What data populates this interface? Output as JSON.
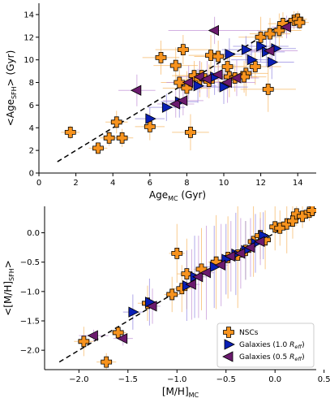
{
  "chart_data": [
    {
      "type": "scatter",
      "xlabel": "Age",
      "xlabel_sub": "MC",
      "xlabel_unit": " (Gyr)",
      "ylabel": "<Age",
      "ylabel_sub": "SFH",
      "ylabel_unit": "> (Gyr)",
      "xlim": [
        0,
        15
      ],
      "ylim": [
        0,
        15
      ],
      "xticks": [
        0,
        2,
        4,
        6,
        8,
        10,
        12,
        14
      ],
      "yticks": [
        0,
        2,
        4,
        6,
        8,
        10,
        12,
        14
      ],
      "reference_line": {
        "x": [
          1,
          14
        ],
        "y": [
          1,
          14
        ],
        "style": "dashed"
      },
      "series": [
        {
          "name": "NSCs",
          "marker": "plus",
          "color": "#f7931e",
          "errcolor": "#f7b560",
          "points": [
            {
              "x": 1.7,
              "y": 3.6,
              "xerr": 0.5,
              "yerr": 0.6
            },
            {
              "x": 3.2,
              "y": 2.2,
              "xerr": 0.5,
              "yerr": 0.5
            },
            {
              "x": 4.2,
              "y": 4.5,
              "xerr": 0.6,
              "yerr": 1.0
            },
            {
              "x": 3.8,
              "y": 3.1,
              "xerr": 0.5,
              "yerr": 0.7
            },
            {
              "x": 4.5,
              "y": 3.1,
              "xerr": 0.6,
              "yerr": 0.8
            },
            {
              "x": 6.0,
              "y": 4.1,
              "xerr": 0.8,
              "yerr": 1.2
            },
            {
              "x": 6.6,
              "y": 10.2,
              "xerr": 1.0,
              "yerr": 1.5
            },
            {
              "x": 7.4,
              "y": 9.5,
              "xerr": 1.2,
              "yerr": 1.6
            },
            {
              "x": 7.8,
              "y": 10.9,
              "xerr": 1.5,
              "yerr": 1.3
            },
            {
              "x": 7.6,
              "y": 8.0,
              "xerr": 1.0,
              "yerr": 1.4
            },
            {
              "x": 8.0,
              "y": 7.5,
              "xerr": 1.3,
              "yerr": 1.5
            },
            {
              "x": 8.2,
              "y": 3.6,
              "xerr": 1.0,
              "yerr": 1.6
            },
            {
              "x": 8.4,
              "y": 8.6,
              "xerr": 1.2,
              "yerr": 1.3
            },
            {
              "x": 8.7,
              "y": 8.3,
              "xerr": 1.0,
              "yerr": 1.6
            },
            {
              "x": 8.8,
              "y": 8.6,
              "xerr": 1.4,
              "yerr": 1.2
            },
            {
              "x": 9.3,
              "y": 10.4,
              "xerr": 1.2,
              "yerr": 1.8
            },
            {
              "x": 9.7,
              "y": 10.3,
              "xerr": 1.3,
              "yerr": 1.4
            },
            {
              "x": 10.2,
              "y": 9.4,
              "xerr": 1.0,
              "yerr": 1.5
            },
            {
              "x": 10.3,
              "y": 8.5,
              "xerr": 1.5,
              "yerr": 1.8
            },
            {
              "x": 11.2,
              "y": 8.8,
              "xerr": 1.2,
              "yerr": 2.0
            },
            {
              "x": 11.7,
              "y": 9.4,
              "xerr": 1.4,
              "yerr": 1.6
            },
            {
              "x": 12.0,
              "y": 12.0,
              "xerr": 1.2,
              "yerr": 1.8
            },
            {
              "x": 12.4,
              "y": 7.4,
              "xerr": 1.5,
              "yerr": 2.0
            },
            {
              "x": 12.5,
              "y": 12.3,
              "xerr": 1.1,
              "yerr": 1.4
            },
            {
              "x": 13.0,
              "y": 12.6,
              "xerr": 1.2,
              "yerr": 1.5
            },
            {
              "x": 13.2,
              "y": 13.2,
              "xerr": 0.8,
              "yerr": 1.0
            },
            {
              "x": 13.8,
              "y": 13.5,
              "xerr": 0.6,
              "yerr": 0.8
            },
            {
              "x": 14.0,
              "y": 13.6,
              "xerr": 0.5,
              "yerr": 0.7
            },
            {
              "x": 14.1,
              "y": 13.3,
              "xerr": 0.5,
              "yerr": 0.6
            },
            {
              "x": 11.1,
              "y": 8.5,
              "xerr": 1.2,
              "yerr": 1.4
            },
            {
              "x": 10.6,
              "y": 8.4,
              "xerr": 1.0,
              "yerr": 1.2
            },
            {
              "x": 9.2,
              "y": 8.1,
              "xerr": 1.1,
              "yerr": 1.5
            }
          ]
        },
        {
          "name": "Galaxies (1.0 R_eff)",
          "marker": "triangle-right",
          "color": "#0a1fb5",
          "errcolor": "#8f83e0",
          "points": [
            {
              "x": 6.0,
              "y": 4.8,
              "xerr": 0.8,
              "yerr": 1.0
            },
            {
              "x": 6.9,
              "y": 5.8,
              "xerr": 1.0,
              "yerr": 1.2
            },
            {
              "x": 7.6,
              "y": 6.3,
              "xerr": 1.0,
              "yerr": 1.4
            },
            {
              "x": 8.6,
              "y": 7.7,
              "xerr": 1.0,
              "yerr": 1.5
            },
            {
              "x": 9.5,
              "y": 8.5,
              "xerr": 1.2,
              "yerr": 1.6
            },
            {
              "x": 10.0,
              "y": 7.6,
              "xerr": 1.3,
              "yerr": 1.5
            },
            {
              "x": 10.3,
              "y": 10.5,
              "xerr": 1.2,
              "yerr": 1.4
            },
            {
              "x": 11.2,
              "y": 10.9,
              "xerr": 1.3,
              "yerr": 1.2
            },
            {
              "x": 11.5,
              "y": 10.0,
              "xerr": 1.1,
              "yerr": 1.6
            },
            {
              "x": 12.0,
              "y": 11.2,
              "xerr": 1.5,
              "yerr": 1.4
            },
            {
              "x": 12.3,
              "y": 10.7,
              "xerr": 1.0,
              "yerr": 1.3
            },
            {
              "x": 12.6,
              "y": 9.8,
              "xerr": 1.2,
              "yerr": 1.5
            },
            {
              "x": 12.8,
              "y": 11.0,
              "xerr": 1.1,
              "yerr": 1.2
            }
          ]
        },
        {
          "name": "Galaxies (0.5 R_eff)",
          "marker": "triangle-left",
          "color": "#6b1a6e",
          "errcolor": "#c08fd6",
          "points": [
            {
              "x": 5.3,
              "y": 7.3,
              "xerr": 1.0,
              "yerr": 1.4
            },
            {
              "x": 7.4,
              "y": 6.1,
              "xerr": 1.0,
              "yerr": 1.2
            },
            {
              "x": 7.8,
              "y": 6.4,
              "xerr": 1.1,
              "yerr": 1.3
            },
            {
              "x": 8.1,
              "y": 8.0,
              "xerr": 1.2,
              "yerr": 1.5
            },
            {
              "x": 8.7,
              "y": 8.5,
              "xerr": 1.2,
              "yerr": 1.4
            },
            {
              "x": 9.1,
              "y": 8.3,
              "xerr": 1.0,
              "yerr": 1.6
            },
            {
              "x": 9.7,
              "y": 8.7,
              "xerr": 1.3,
              "yerr": 1.5
            },
            {
              "x": 10.2,
              "y": 8.0,
              "xerr": 1.5,
              "yerr": 1.8
            },
            {
              "x": 10.7,
              "y": 8.4,
              "xerr": 1.2,
              "yerr": 1.6
            },
            {
              "x": 9.5,
              "y": 12.6,
              "xerr": 2.5,
              "yerr": 1.2
            },
            {
              "x": 12.5,
              "y": 10.8,
              "xerr": 1.5,
              "yerr": 1.6
            },
            {
              "x": 13.4,
              "y": 12.9,
              "xerr": 0.8,
              "yerr": 1.0
            }
          ]
        }
      ]
    },
    {
      "type": "scatter",
      "xlabel": "[M/H]",
      "xlabel_sub": "MC",
      "xlabel_unit": "",
      "ylabel": "<[M/H]",
      "ylabel_sub": "SFH",
      "ylabel_unit": ">",
      "xlim": [
        -2.35,
        0.42
      ],
      "ylim": [
        -2.33,
        0.45
      ],
      "xticks": [
        -2.0,
        -1.5,
        -1.0,
        -0.5,
        0.0,
        0.5
      ],
      "xtick_labels": [
        "−2.0",
        "−1.5",
        "−1.0",
        "−0.5",
        "0.0",
        "0.5"
      ],
      "yticks": [
        -2.0,
        -1.5,
        -1.0,
        -0.5,
        0.0,
        0.5
      ],
      "ytick_labels": [
        "−2.0",
        "−1.5",
        "−1.0",
        "−0.5",
        "0.0",
        "0.5"
      ],
      "reference_line": {
        "x": [
          -2.2,
          0.4
        ],
        "y": [
          -2.2,
          0.4
        ],
        "style": "dashed"
      },
      "legend": {
        "position": "bottom-right",
        "entries": [
          {
            "label": "NSCs",
            "marker": "plus",
            "color": "#f7931e"
          },
          {
            "label": "Galaxies (1.0 ",
            "label_italic": "R",
            "label_sub": "eff",
            "label_end": ")",
            "marker": "triangle-right",
            "color": "#0a1fb5"
          },
          {
            "label": "Galaxies (0.5 ",
            "label_italic": "R",
            "label_sub": "eff",
            "label_end": ")",
            "marker": "triangle-left",
            "color": "#6b1a6e"
          }
        ]
      },
      "series": [
        {
          "name": "NSCs",
          "marker": "plus",
          "color": "#f7931e",
          "errcolor": "#f7b560",
          "points": [
            {
              "x": -1.95,
              "y": -1.85,
              "xerr": 0.1,
              "yerr": 0.25
            },
            {
              "x": -1.72,
              "y": -2.2,
              "xerr": 0.1,
              "yerr": 0.15
            },
            {
              "x": -1.6,
              "y": -1.7,
              "xerr": 0.08,
              "yerr": 0.1
            },
            {
              "x": -1.3,
              "y": -1.2,
              "xerr": 0.1,
              "yerr": 0.3
            },
            {
              "x": -1.05,
              "y": -1.05,
              "xerr": 0.08,
              "yerr": 0.3
            },
            {
              "x": -1.0,
              "y": -0.35,
              "xerr": 0.08,
              "yerr": 0.5
            },
            {
              "x": -0.95,
              "y": -0.95,
              "xerr": 0.1,
              "yerr": 0.4
            },
            {
              "x": -0.9,
              "y": -0.7,
              "xerr": 0.1,
              "yerr": 0.6
            },
            {
              "x": -0.75,
              "y": -0.62,
              "xerr": 0.08,
              "yerr": 0.7
            },
            {
              "x": -0.6,
              "y": -0.5,
              "xerr": 0.08,
              "yerr": 0.8
            },
            {
              "x": -0.48,
              "y": -0.42,
              "xerr": 0.08,
              "yerr": 0.7
            },
            {
              "x": -0.38,
              "y": -0.38,
              "xerr": 0.08,
              "yerr": 0.9
            },
            {
              "x": -0.3,
              "y": -0.3,
              "xerr": 0.08,
              "yerr": 0.5
            },
            {
              "x": -0.22,
              "y": -0.15,
              "xerr": 0.06,
              "yerr": 0.6
            },
            {
              "x": -0.15,
              "y": -0.05,
              "xerr": 0.06,
              "yerr": 0.4
            },
            {
              "x": -0.1,
              "y": -0.12,
              "xerr": 0.06,
              "yerr": 0.5
            },
            {
              "x": 0.0,
              "y": 0.1,
              "xerr": 0.05,
              "yerr": 0.4
            },
            {
              "x": 0.05,
              "y": 0.08,
              "xerr": 0.05,
              "yerr": 0.3
            },
            {
              "x": 0.12,
              "y": 0.15,
              "xerr": 0.05,
              "yerr": 0.5
            },
            {
              "x": 0.18,
              "y": 0.2,
              "xerr": 0.05,
              "yerr": 0.3
            },
            {
              "x": 0.22,
              "y": 0.32,
              "xerr": 0.05,
              "yerr": 0.2
            },
            {
              "x": 0.28,
              "y": 0.28,
              "xerr": 0.05,
              "yerr": 0.2
            },
            {
              "x": 0.35,
              "y": 0.35,
              "xerr": 0.04,
              "yerr": 0.15
            },
            {
              "x": 0.38,
              "y": 0.38,
              "xerr": 0.04,
              "yerr": 0.1
            }
          ]
        },
        {
          "name": "Galaxies (1.0 R_eff)",
          "marker": "triangle-right",
          "color": "#0a1fb5",
          "errcolor": "#8f83e0",
          "points": [
            {
              "x": -1.45,
              "y": -1.35,
              "xerr": 0.1,
              "yerr": 0.3
            },
            {
              "x": -1.28,
              "y": -1.18,
              "xerr": 0.08,
              "yerr": 0.4
            },
            {
              "x": -0.9,
              "y": -0.9,
              "xerr": 0.08,
              "yerr": 0.6
            },
            {
              "x": -0.82,
              "y": -0.75,
              "xerr": 0.08,
              "yerr": 0.7
            },
            {
              "x": -0.62,
              "y": -0.58,
              "xerr": 0.08,
              "yerr": 0.7
            },
            {
              "x": -0.5,
              "y": -0.45,
              "xerr": 0.07,
              "yerr": 0.6
            },
            {
              "x": -0.4,
              "y": -0.36,
              "xerr": 0.07,
              "yerr": 0.7
            },
            {
              "x": -0.3,
              "y": -0.3,
              "xerr": 0.07,
              "yerr": 0.5
            },
            {
              "x": -0.2,
              "y": -0.18,
              "xerr": 0.06,
              "yerr": 0.5
            },
            {
              "x": -0.12,
              "y": -0.05,
              "xerr": 0.06,
              "yerr": 0.4
            }
          ]
        },
        {
          "name": "Galaxies (0.5 R_eff)",
          "marker": "triangle-left",
          "color": "#6b1a6e",
          "errcolor": "#c08fd6",
          "points": [
            {
              "x": -1.85,
              "y": -1.75,
              "xerr": 0.15,
              "yerr": 0.1
            },
            {
              "x": -1.55,
              "y": -1.8,
              "xerr": 0.1,
              "yerr": 0.12
            },
            {
              "x": -1.25,
              "y": -1.25,
              "xerr": 0.08,
              "yerr": 0.3
            },
            {
              "x": -0.85,
              "y": -0.88,
              "xerr": 0.08,
              "yerr": 0.6
            },
            {
              "x": -0.78,
              "y": -0.75,
              "xerr": 0.08,
              "yerr": 0.7
            },
            {
              "x": -0.7,
              "y": -0.68,
              "xerr": 0.08,
              "yerr": 0.8
            },
            {
              "x": -0.55,
              "y": -0.55,
              "xerr": 0.07,
              "yerr": 0.7
            },
            {
              "x": -0.45,
              "y": -0.4,
              "xerr": 0.07,
              "yerr": 0.6
            },
            {
              "x": -0.35,
              "y": -0.35,
              "xerr": 0.07,
              "yerr": 0.6
            },
            {
              "x": -0.25,
              "y": -0.25,
              "xerr": 0.06,
              "yerr": 0.5
            },
            {
              "x": -0.15,
              "y": -0.15,
              "xerr": 0.06,
              "yerr": 0.4
            }
          ]
        }
      ]
    }
  ]
}
